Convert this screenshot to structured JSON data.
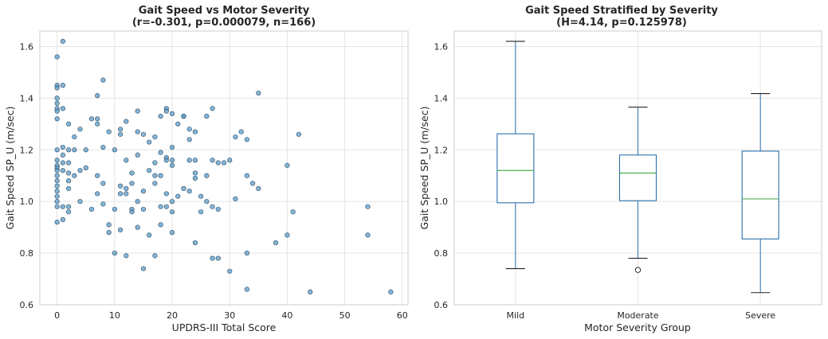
{
  "colors": {
    "point_fill": "#5b9bc8",
    "point_edge": "#2b4a66",
    "box_line": "#2a70ac",
    "median_line": "#4fae4f",
    "grid": "#e5e5e5",
    "frame": "#cccccc"
  },
  "chart_data": [
    {
      "type": "scatter",
      "title_line1": "Gait Speed vs Motor Severity",
      "title_line2": "(r=-0.301, p=0.000079, n=166)",
      "xlabel": "UPDRS-III Total Score",
      "ylabel": "Gait Speed SP_U (m/sec)",
      "xlim": [
        -3,
        61
      ],
      "ylim": [
        0.6,
        1.66
      ],
      "xticks": [
        0,
        10,
        20,
        30,
        40,
        50,
        60
      ],
      "yticks": [
        0.6,
        0.8,
        1.0,
        1.2,
        1.4,
        1.6
      ],
      "ytick_labels": [
        "0.6",
        "0.8",
        "1.0",
        "1.2",
        "1.4",
        "1.6"
      ],
      "grid": true,
      "points": [
        [
          0,
          1.56
        ],
        [
          1,
          1.62
        ],
        [
          0,
          1.45
        ],
        [
          0,
          1.44
        ],
        [
          1,
          1.45
        ],
        [
          0,
          1.4
        ],
        [
          0,
          1.38
        ],
        [
          0,
          1.36
        ],
        [
          0,
          1.35
        ],
        [
          1,
          1.36
        ],
        [
          0,
          1.32
        ],
        [
          0,
          1.2
        ],
        [
          0,
          1.16
        ],
        [
          0,
          1.14
        ],
        [
          0,
          1.13
        ],
        [
          0,
          1.12
        ],
        [
          0,
          1.1
        ],
        [
          0,
          1.08
        ],
        [
          0,
          1.06
        ],
        [
          0,
          1.04
        ],
        [
          0,
          1.02
        ],
        [
          0,
          1.0
        ],
        [
          0,
          0.98
        ],
        [
          0,
          0.92
        ],
        [
          1,
          0.93
        ],
        [
          1,
          0.98
        ],
        [
          1,
          1.21
        ],
        [
          1,
          1.18
        ],
        [
          1,
          1.15
        ],
        [
          1,
          1.12
        ],
        [
          2,
          1.2
        ],
        [
          2,
          1.15
        ],
        [
          2,
          1.11
        ],
        [
          2,
          1.08
        ],
        [
          2,
          1.05
        ],
        [
          2,
          0.98
        ],
        [
          2,
          0.96
        ],
        [
          2,
          1.3
        ],
        [
          3,
          1.25
        ],
        [
          3,
          1.2
        ],
        [
          3,
          1.1
        ],
        [
          4,
          1.28
        ],
        [
          4,
          1.12
        ],
        [
          4,
          1.0
        ],
        [
          5,
          1.2
        ],
        [
          5,
          1.13
        ],
        [
          6,
          1.32
        ],
        [
          6,
          0.97
        ],
        [
          7,
          1.41
        ],
        [
          7,
          1.32
        ],
        [
          7,
          1.3
        ],
        [
          7,
          1.1
        ],
        [
          7,
          1.03
        ],
        [
          8,
          1.47
        ],
        [
          8,
          1.21
        ],
        [
          8,
          0.99
        ],
        [
          8,
          1.07
        ],
        [
          9,
          1.27
        ],
        [
          9,
          0.91
        ],
        [
          9,
          0.88
        ],
        [
          10,
          1.2
        ],
        [
          10,
          0.97
        ],
        [
          10,
          0.8
        ],
        [
          11,
          1.28
        ],
        [
          11,
          1.26
        ],
        [
          11,
          1.06
        ],
        [
          11,
          1.03
        ],
        [
          11,
          0.89
        ],
        [
          12,
          1.31
        ],
        [
          12,
          1.16
        ],
        [
          12,
          1.05
        ],
        [
          12,
          1.03
        ],
        [
          12,
          0.79
        ],
        [
          13,
          1.11
        ],
        [
          13,
          1.07
        ],
        [
          13,
          0.97
        ],
        [
          13,
          0.96
        ],
        [
          14,
          1.35
        ],
        [
          14,
          1.27
        ],
        [
          14,
          1.18
        ],
        [
          14,
          1.0
        ],
        [
          14,
          0.9
        ],
        [
          15,
          1.26
        ],
        [
          15,
          1.04
        ],
        [
          15,
          0.97
        ],
        [
          15,
          0.74
        ],
        [
          16,
          1.23
        ],
        [
          16,
          1.12
        ],
        [
          16,
          0.87
        ],
        [
          17,
          1.25
        ],
        [
          17,
          1.15
        ],
        [
          17,
          1.1
        ],
        [
          17,
          1.07
        ],
        [
          17,
          0.79
        ],
        [
          18,
          1.33
        ],
        [
          18,
          1.19
        ],
        [
          18,
          1.1
        ],
        [
          18,
          0.98
        ],
        [
          18,
          0.91
        ],
        [
          19,
          1.36
        ],
        [
          19,
          1.35
        ],
        [
          19,
          1.17
        ],
        [
          19,
          1.16
        ],
        [
          19,
          1.03
        ],
        [
          19,
          0.98
        ],
        [
          20,
          1.34
        ],
        [
          20,
          1.21
        ],
        [
          20,
          1.16
        ],
        [
          20,
          1.14
        ],
        [
          20,
          1.0
        ],
        [
          20,
          0.96
        ],
        [
          20,
          0.88
        ],
        [
          21,
          1.3
        ],
        [
          21,
          1.02
        ],
        [
          22,
          1.33
        ],
        [
          22,
          1.33
        ],
        [
          22,
          1.05
        ],
        [
          23,
          1.28
        ],
        [
          23,
          1.24
        ],
        [
          23,
          1.16
        ],
        [
          23,
          1.04
        ],
        [
          24,
          1.27
        ],
        [
          24,
          1.16
        ],
        [
          24,
          1.11
        ],
        [
          24,
          1.09
        ],
        [
          24,
          0.84
        ],
        [
          25,
          1.02
        ],
        [
          25,
          0.96
        ],
        [
          26,
          1.33
        ],
        [
          26,
          1.1
        ],
        [
          26,
          1.0
        ],
        [
          27,
          1.36
        ],
        [
          27,
          1.16
        ],
        [
          27,
          0.98
        ],
        [
          27,
          0.78
        ],
        [
          28,
          1.15
        ],
        [
          28,
          0.97
        ],
        [
          28,
          0.78
        ],
        [
          29,
          1.15
        ],
        [
          30,
          1.16
        ],
        [
          30,
          0.73
        ],
        [
          31,
          1.25
        ],
        [
          31,
          1.01
        ],
        [
          32,
          1.27
        ],
        [
          33,
          1.24
        ],
        [
          33,
          1.1
        ],
        [
          33,
          0.8
        ],
        [
          33,
          0.66
        ],
        [
          34,
          1.07
        ],
        [
          35,
          1.42
        ],
        [
          35,
          1.05
        ],
        [
          38,
          0.84
        ],
        [
          40,
          1.14
        ],
        [
          40,
          0.87
        ],
        [
          41,
          0.96
        ],
        [
          42,
          1.26
        ],
        [
          44,
          0.65
        ],
        [
          54,
          0.98
        ],
        [
          54,
          0.87
        ],
        [
          58,
          0.65
        ]
      ]
    },
    {
      "type": "box",
      "title_line1": "Gait Speed Stratified by Severity",
      "title_line2": "(H=4.14, p=0.125978)",
      "xlabel": "Motor Severity Group",
      "ylabel": "Gait Speed SP_U (m/sec)",
      "ylim": [
        0.6,
        1.66
      ],
      "yticks": [
        0.6,
        0.8,
        1.0,
        1.2,
        1.4,
        1.6
      ],
      "ytick_labels": [
        "0.6",
        "0.8",
        "1.0",
        "1.2",
        "1.4",
        "1.6"
      ],
      "grid": true,
      "categories": [
        "Mild",
        "Moderate",
        "Severe"
      ],
      "boxes": [
        {
          "name": "Mild",
          "whisker_low": 0.74,
          "q1": 0.995,
          "median": 1.12,
          "q3": 1.262,
          "whisker_high": 1.62,
          "outliers": []
        },
        {
          "name": "Moderate",
          "whisker_low": 0.78,
          "q1": 1.003,
          "median": 1.11,
          "q3": 1.18,
          "whisker_high": 1.365,
          "outliers": [
            0.735
          ]
        },
        {
          "name": "Severe",
          "whisker_low": 0.647,
          "q1": 0.855,
          "median": 1.01,
          "q3": 1.195,
          "whisker_high": 1.418,
          "outliers": []
        }
      ]
    }
  ]
}
